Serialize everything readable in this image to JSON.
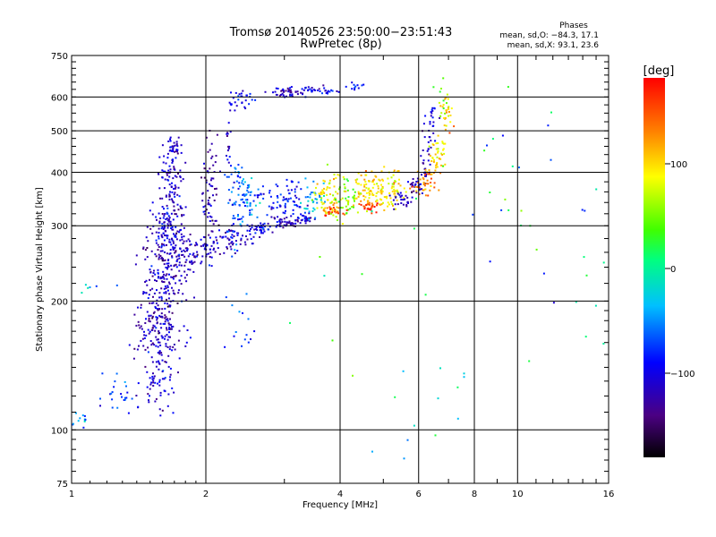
{
  "header": {
    "title_line1": "Tromsø 20140526 23:50:00−23:51:43",
    "title_line2": "RwPretec (8p)",
    "stats_title": "Phases",
    "stats_o": "mean, sd,O: −84.3, 17.1",
    "stats_x": "mean, sd,X:  93.1, 23.6"
  },
  "colorbar": {
    "label": "[deg]",
    "ticks": [
      "100",
      "0",
      "−100"
    ]
  },
  "chart_data": {
    "type": "scatter",
    "xlabel": "Frequency [MHz]",
    "ylabel": "Stationary phase Virtual Height [km]",
    "xscale": "log",
    "yscale": "log",
    "xlim": [
      1,
      16
    ],
    "ylim": [
      75,
      750
    ],
    "xticks": [
      1,
      2,
      4,
      6,
      8,
      10,
      16
    ],
    "xtick_labels": [
      "1",
      "2",
      "4",
      "6",
      "8",
      "10",
      "16"
    ],
    "yticks": [
      75,
      100,
      200,
      300,
      400,
      500,
      600,
      750
    ],
    "ytick_labels": [
      "75",
      "100",
      "200",
      "300",
      "400",
      "500",
      "600",
      "750"
    ],
    "grid": true,
    "color_by": "phase_deg",
    "color_range": [
      -170,
      190
    ],
    "points": [
      {
        "f": 1.55,
        "h": 130,
        "phase": -95,
        "n": 60,
        "sf": 0.05,
        "sh": 0.09
      },
      {
        "f": 1.6,
        "h": 170,
        "phase": -110,
        "n": 160,
        "sf": 0.06,
        "sh": 0.09
      },
      {
        "f": 1.62,
        "h": 230,
        "phase": -105,
        "n": 170,
        "sf": 0.06,
        "sh": 0.1
      },
      {
        "f": 1.65,
        "h": 300,
        "phase": -100,
        "n": 130,
        "sf": 0.045,
        "sh": 0.08
      },
      {
        "f": 1.67,
        "h": 380,
        "phase": -100,
        "n": 80,
        "sf": 0.03,
        "sh": 0.09
      },
      {
        "f": 1.7,
        "h": 460,
        "phase": -100,
        "n": 30,
        "sf": 0.02,
        "sh": 0.03
      },
      {
        "f": 1.28,
        "h": 120,
        "phase": -75,
        "n": 25,
        "sf": 0.05,
        "sh": 0.05
      },
      {
        "f": 1.05,
        "h": 106,
        "phase": -35,
        "n": 12,
        "sf": 0.03,
        "sh": 0.02
      },
      {
        "f": 1.85,
        "h": 255,
        "phase": -100,
        "n": 40,
        "sf": 0.05,
        "sh": 0.04
      },
      {
        "f": 2.05,
        "h": 268,
        "phase": -100,
        "n": 40,
        "sf": 0.05,
        "sh": 0.03
      },
      {
        "f": 2.35,
        "h": 282,
        "phase": -95,
        "n": 45,
        "sf": 0.05,
        "sh": 0.025
      },
      {
        "f": 2.65,
        "h": 295,
        "phase": -90,
        "n": 40,
        "sf": 0.04,
        "sh": 0.02
      },
      {
        "f": 3.0,
        "h": 304,
        "phase": -100,
        "n": 40,
        "sf": 0.03,
        "sh": 0.015
      },
      {
        "f": 3.35,
        "h": 310,
        "phase": -95,
        "n": 30,
        "sf": 0.03,
        "sh": 0.015
      },
      {
        "f": 2.05,
        "h": 350,
        "phase": -110,
        "n": 70,
        "sf": 0.02,
        "sh": 0.16
      },
      {
        "f": 2.35,
        "h": 340,
        "phase": -60,
        "n": 60,
        "sf": 0.03,
        "sh": 0.12
      },
      {
        "f": 2.5,
        "h": 350,
        "phase": -40,
        "n": 40,
        "sf": 0.03,
        "sh": 0.06
      },
      {
        "f": 2.8,
        "h": 345,
        "phase": -80,
        "n": 30,
        "sf": 0.05,
        "sh": 0.05
      },
      {
        "f": 2.25,
        "h": 475,
        "phase": -100,
        "n": 12,
        "sf": 0.01,
        "sh": 0.06
      },
      {
        "f": 2.45,
        "h": 590,
        "phase": -90,
        "n": 30,
        "sf": 0.04,
        "sh": 0.03
      },
      {
        "f": 3.05,
        "h": 615,
        "phase": -100,
        "n": 50,
        "sf": 0.05,
        "sh": 0.015
      },
      {
        "f": 3.6,
        "h": 622,
        "phase": -90,
        "n": 30,
        "sf": 0.05,
        "sh": 0.01
      },
      {
        "f": 4.3,
        "h": 635,
        "phase": -70,
        "n": 12,
        "sf": 0.03,
        "sh": 0.01
      },
      {
        "f": 3.1,
        "h": 355,
        "phase": -80,
        "n": 40,
        "sf": 0.04,
        "sh": 0.05
      },
      {
        "f": 3.5,
        "h": 345,
        "phase": -30,
        "n": 35,
        "sf": 0.03,
        "sh": 0.06
      },
      {
        "f": 3.75,
        "h": 355,
        "phase": 100,
        "n": 70,
        "sf": 0.04,
        "sh": 0.06
      },
      {
        "f": 4.1,
        "h": 345,
        "phase": 60,
        "n": 40,
        "sf": 0.03,
        "sh": 0.06
      },
      {
        "f": 4.6,
        "h": 362,
        "phase": 110,
        "n": 80,
        "sf": 0.04,
        "sh": 0.05
      },
      {
        "f": 5.2,
        "h": 362,
        "phase": 105,
        "n": 70,
        "sf": 0.04,
        "sh": 0.05
      },
      {
        "f": 3.9,
        "h": 325,
        "phase": 160,
        "n": 25,
        "sf": 0.03,
        "sh": 0.015
      },
      {
        "f": 4.6,
        "h": 333,
        "phase": 170,
        "n": 25,
        "sf": 0.03,
        "sh": 0.015
      },
      {
        "f": 5.5,
        "h": 345,
        "phase": -100,
        "n": 30,
        "sf": 0.04,
        "sh": 0.02
      },
      {
        "f": 5.9,
        "h": 370,
        "phase": -100,
        "n": 25,
        "sf": 0.02,
        "sh": 0.03
      },
      {
        "f": 6.2,
        "h": 420,
        "phase": -100,
        "n": 25,
        "sf": 0.015,
        "sh": 0.06
      },
      {
        "f": 6.4,
        "h": 520,
        "phase": -90,
        "n": 25,
        "sf": 0.015,
        "sh": 0.07
      },
      {
        "f": 6.2,
        "h": 380,
        "phase": 140,
        "n": 40,
        "sf": 0.03,
        "sh": 0.04
      },
      {
        "f": 6.6,
        "h": 440,
        "phase": 110,
        "n": 40,
        "sf": 0.02,
        "sh": 0.07
      },
      {
        "f": 6.95,
        "h": 535,
        "phase": 120,
        "n": 30,
        "sf": 0.015,
        "sh": 0.06
      },
      {
        "f": 6.7,
        "h": 600,
        "phase": 60,
        "n": 10,
        "sf": 0.02,
        "sh": 0.05
      },
      {
        "f": 8.5,
        "h": 380,
        "phase": 40,
        "n": 12,
        "sf": 0.2,
        "sh": 0.25
      },
      {
        "f": 5.5,
        "h": 200,
        "phase": 30,
        "n": 15,
        "sf": 0.3,
        "sh": 0.4
      },
      {
        "f": 11,
        "h": 300,
        "phase": -70,
        "n": 12,
        "sf": 0.2,
        "sh": 0.3
      },
      {
        "f": 7.0,
        "h": 130,
        "phase": -20,
        "n": 10,
        "sf": 0.15,
        "sh": 0.2
      },
      {
        "f": 1.15,
        "h": 220,
        "phase": -30,
        "n": 6,
        "sf": 0.05,
        "sh": 0.05
      },
      {
        "f": 2.4,
        "h": 175,
        "phase": -60,
        "n": 15,
        "sf": 0.05,
        "sh": 0.08
      },
      {
        "f": 14.5,
        "h": 300,
        "phase": 20,
        "n": 10,
        "sf": 0.08,
        "sh": 0.3
      }
    ]
  }
}
